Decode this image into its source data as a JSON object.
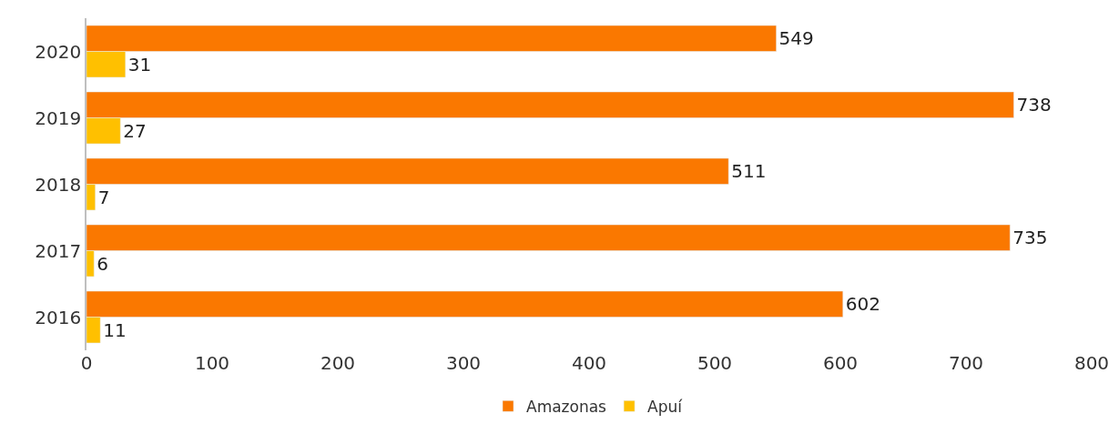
{
  "chart_data": {
    "type": "bar",
    "orientation": "horizontal",
    "categories": [
      "2020",
      "2019",
      "2018",
      "2017",
      "2016"
    ],
    "series": [
      {
        "name": "Amazonas",
        "color": "#fa7800",
        "values": [
          549,
          738,
          511,
          735,
          602
        ]
      },
      {
        "name": "Apuí",
        "color": "#ffc000",
        "values": [
          31,
          27,
          7,
          6,
          11
        ]
      }
    ],
    "xlim": [
      0,
      800
    ],
    "xticks": [
      0,
      100,
      200,
      300,
      400,
      500,
      600,
      700,
      800
    ],
    "data_labels": true,
    "grid": false,
    "legend": "bottom"
  }
}
